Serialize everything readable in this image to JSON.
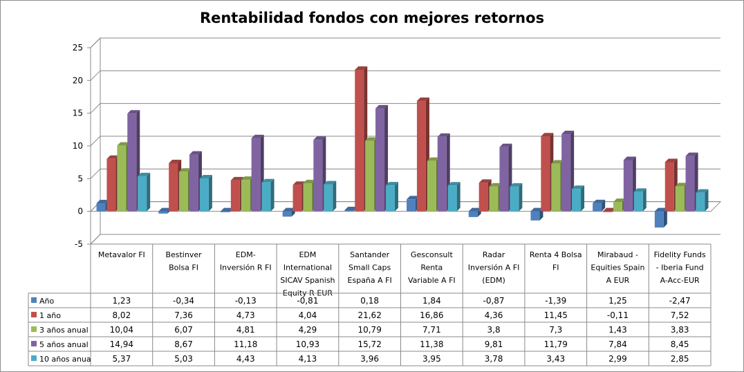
{
  "chart_data": {
    "type": "bar",
    "title": "Rentabilidad fondos con mejores retornos",
    "ylim": [
      -5,
      25
    ],
    "yticks": [
      -5,
      0,
      5,
      10,
      15,
      20,
      25
    ],
    "grid": true,
    "legend": "table-left",
    "categories": [
      [
        "Metavalor FI"
      ],
      [
        "Bestinver",
        "Bolsa FI"
      ],
      [
        "EDM-",
        "Inversión R FI"
      ],
      [
        "EDM",
        "International",
        "SICAV Spanish",
        "Equity R EUR"
      ],
      [
        "Santander",
        "Small Caps",
        "España A FI"
      ],
      [
        "Gesconsult",
        "Renta",
        "Variable A FI"
      ],
      [
        "Radar",
        "Inversión A FI",
        "(EDM)"
      ],
      [
        "Renta 4 Bolsa",
        "FI"
      ],
      [
        "Mirabaud -",
        "Equities Spain",
        "A EUR"
      ],
      [
        "Fidelity Funds",
        "- Iberia Fund",
        "A-Acc-EUR"
      ]
    ],
    "series": [
      {
        "name": "Año",
        "color": "#4f81bd",
        "values": [
          1.23,
          -0.34,
          -0.13,
          -0.81,
          0.18,
          1.84,
          -0.87,
          -1.39,
          1.25,
          -2.47
        ],
        "labels": [
          "1,23",
          "-0,34",
          "-0,13",
          "-0,81",
          "0,18",
          "1,84",
          "-0,87",
          "-1,39",
          "1,25",
          "-2,47"
        ]
      },
      {
        "name": "1 año",
        "color": "#c0504d",
        "values": [
          8.02,
          7.36,
          4.73,
          4.04,
          21.62,
          16.86,
          4.36,
          11.45,
          -0.11,
          7.52
        ],
        "labels": [
          "8,02",
          "7,36",
          "4,73",
          "4,04",
          "21,62",
          "16,86",
          "4,36",
          "11,45",
          "-0,11",
          "7,52"
        ]
      },
      {
        "name": "3 años anual",
        "color": "#9bbb59",
        "values": [
          10.04,
          6.07,
          4.81,
          4.29,
          10.79,
          7.71,
          3.8,
          7.3,
          1.43,
          3.83
        ],
        "labels": [
          "10,04",
          "6,07",
          "4,81",
          "4,29",
          "10,79",
          "7,71",
          "3,8",
          "7,3",
          "1,43",
          "3,83"
        ]
      },
      {
        "name": "5 años anual",
        "color": "#8064a2",
        "values": [
          14.94,
          8.67,
          11.18,
          10.93,
          15.72,
          11.38,
          9.81,
          11.79,
          7.84,
          8.45
        ],
        "labels": [
          "14,94",
          "8,67",
          "11,18",
          "10,93",
          "15,72",
          "11,38",
          "9,81",
          "11,79",
          "7,84",
          "8,45"
        ]
      },
      {
        "name": "10 años anua",
        "color": "#4bacc6",
        "values": [
          5.37,
          5.03,
          4.43,
          4.13,
          3.96,
          3.95,
          3.78,
          3.43,
          2.99,
          2.85
        ],
        "labels": [
          "5,37",
          "5,03",
          "4,43",
          "4,13",
          "3,96",
          "3,95",
          "3,78",
          "3,43",
          "2,99",
          "2,85"
        ]
      }
    ]
  }
}
